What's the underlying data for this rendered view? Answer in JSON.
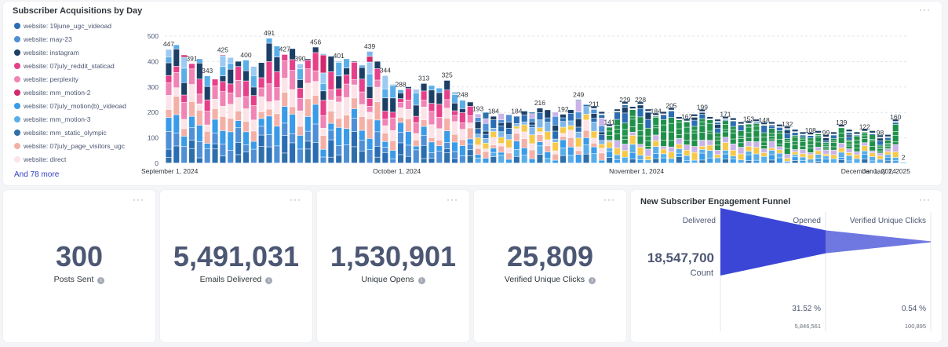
{
  "chart": {
    "title": "Subscriber Acquisitions by Day",
    "menu_icon": "ellipsis-icon",
    "legend": [
      {
        "label": "website: 19june_ugc_videoad",
        "color": "#2a6db3"
      },
      {
        "label": "website: may-23",
        "color": "#4e8fd6"
      },
      {
        "label": "website: instagram",
        "color": "#1c3f66"
      },
      {
        "label": "website: 07july_reddit_staticad",
        "color": "#e6408a"
      },
      {
        "label": "website: perplexity",
        "color": "#f084b5"
      },
      {
        "label": "website: mm_motion-2",
        "color": "#d12a6c"
      },
      {
        "label": "website: 07july_motion(b)_videoad",
        "color": "#3a9be8"
      },
      {
        "label": "website: mm_motion-3",
        "color": "#5aaee8"
      },
      {
        "label": "website: mm_static_olympic",
        "color": "#2f6fa8"
      },
      {
        "label": "website: 07july_page_visitors_ugc",
        "color": "#f4b0a6"
      },
      {
        "label": "website: direct",
        "color": "#fbe3e8"
      }
    ],
    "more_link": "And 78 more"
  },
  "chart_data": {
    "type": "bar",
    "title": "Subscriber Acquisitions by Day",
    "stacked": true,
    "x_start": "2024-09-01",
    "x_ticks": [
      "September 1, 2024",
      "October 1, 2024",
      "November 1, 2024",
      "December 1, 2024",
      "January 1, 2025"
    ],
    "y_ticks": [
      0,
      100,
      200,
      300,
      400,
      500
    ],
    "ylim": [
      0,
      520
    ],
    "totals": [
      447,
      465,
      425,
      391,
      410,
      343,
      330,
      425,
      415,
      400,
      405,
      380,
      395,
      491,
      460,
      427,
      450,
      390,
      410,
      456,
      430,
      420,
      401,
      410,
      400,
      385,
      439,
      400,
      344,
      310,
      288,
      300,
      290,
      313,
      305,
      295,
      325,
      280,
      248,
      240,
      193,
      200,
      184,
      195,
      190,
      184,
      205,
      200,
      216,
      210,
      200,
      192,
      210,
      249,
      230,
      211,
      190,
      141,
      200,
      229,
      210,
      228,
      200,
      184,
      190,
      205,
      170,
      162,
      180,
      199,
      170,
      160,
      171,
      165,
      150,
      153,
      160,
      148,
      150,
      140,
      132,
      120,
      110,
      108,
      115,
      99,
      110,
      139,
      120,
      110,
      122,
      115,
      98,
      100,
      160,
      2
    ],
    "bar_labels": {
      "0": 447,
      "3": 391,
      "5": 343,
      "7": 425,
      "10": 400,
      "13": 491,
      "15": 427,
      "17": 390,
      "19": 456,
      "22": 401,
      "26": 439,
      "28": 344,
      "30": 288,
      "33": 313,
      "36": 325,
      "38": 248,
      "40": 193,
      "42": 184,
      "45": 184,
      "48": 216,
      "51": 192,
      "53": 249,
      "55": 211,
      "57": 141,
      "59": 229,
      "61": 228,
      "63": 184,
      "65": 205,
      "67": 162,
      "69": 199,
      "72": 171,
      "75": 153,
      "77": 148,
      "80": 132,
      "83": 108,
      "85": 99,
      "87": 139,
      "90": 122,
      "92": 98,
      "94": 160,
      "95": 2
    },
    "annotations": [
      {
        "index": 63,
        "text": "184"
      }
    ]
  },
  "stats": [
    {
      "value": "300",
      "label": "Posts Sent"
    },
    {
      "value": "5,491,031",
      "label": "Emails Delivered"
    },
    {
      "value": "1,530,901",
      "label": "Unique Opens"
    },
    {
      "value": "25,809",
      "label": "Verified Unique Clicks"
    }
  ],
  "funnel": {
    "title": "New Subscriber Engagement Funnel",
    "steps": [
      {
        "label": "Delivered",
        "value": "18,547,700",
        "unit": "Count",
        "ratio": 1.0
      },
      {
        "label": "Opened",
        "percent": "31.52 %",
        "count": "5,846,561",
        "ratio": 0.3152
      },
      {
        "label": "Verified Unique Clicks",
        "percent": "0.54 %",
        "count": "100,895",
        "ratio": 0.0054
      }
    ],
    "colors": {
      "primary": "#3b46d6",
      "secondary": "#6f77e0"
    }
  }
}
